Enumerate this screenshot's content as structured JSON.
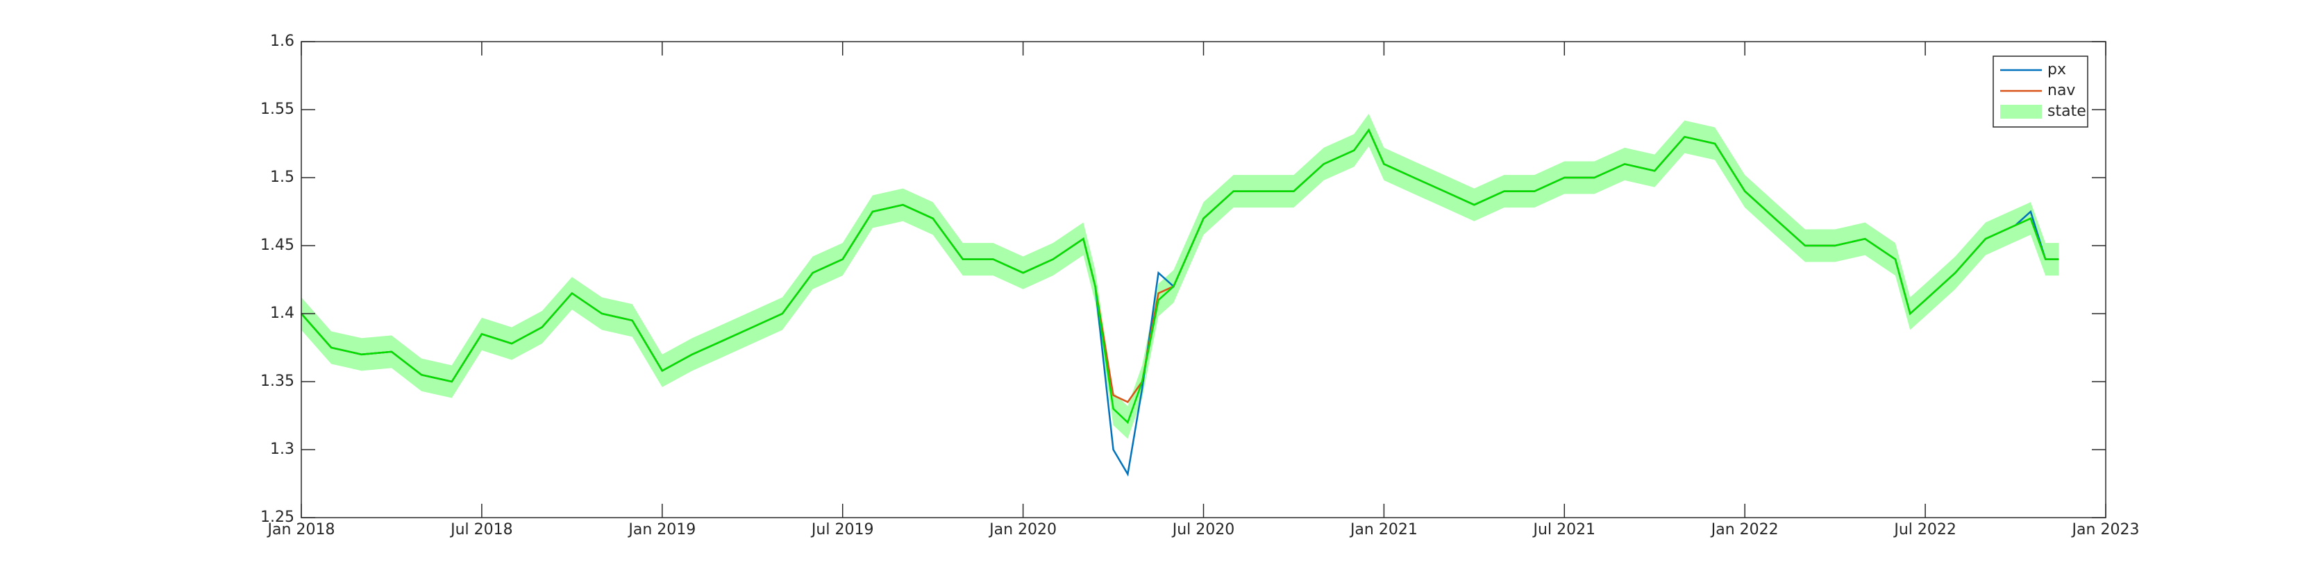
{
  "chart_data": {
    "type": "line",
    "x": [
      2018.0,
      2018.083,
      2018.167,
      2018.25,
      2018.333,
      2018.417,
      2018.5,
      2018.583,
      2018.667,
      2018.75,
      2018.833,
      2018.917,
      2019.0,
      2019.083,
      2019.167,
      2019.25,
      2019.333,
      2019.417,
      2019.5,
      2019.583,
      2019.667,
      2019.75,
      2019.833,
      2019.917,
      2020.0,
      2020.083,
      2020.167,
      2020.2,
      2020.25,
      2020.29,
      2020.33,
      2020.375,
      2020.417,
      2020.5,
      2020.583,
      2020.667,
      2020.75,
      2020.833,
      2020.917,
      2020.958,
      2021.0,
      2021.083,
      2021.167,
      2021.25,
      2021.333,
      2021.417,
      2021.5,
      2021.583,
      2021.667,
      2021.75,
      2021.833,
      2021.917,
      2022.0,
      2022.083,
      2022.167,
      2022.25,
      2022.333,
      2022.417,
      2022.458,
      2022.5,
      2022.583,
      2022.667,
      2022.75,
      2022.792,
      2022.833,
      2022.87
    ],
    "series": [
      {
        "name": "px",
        "color": "#0072bd",
        "values": [
          1.4,
          1.375,
          1.37,
          1.372,
          1.355,
          1.35,
          1.385,
          1.378,
          1.39,
          1.415,
          1.4,
          1.395,
          1.358,
          1.37,
          1.38,
          1.39,
          1.4,
          1.43,
          1.44,
          1.475,
          1.48,
          1.47,
          1.44,
          1.44,
          1.43,
          1.44,
          1.455,
          1.42,
          1.3,
          1.282,
          1.345,
          1.43,
          1.42,
          1.47,
          1.49,
          1.49,
          1.49,
          1.51,
          1.52,
          1.535,
          1.51,
          1.5,
          1.49,
          1.48,
          1.49,
          1.49,
          1.5,
          1.5,
          1.51,
          1.505,
          1.53,
          1.525,
          1.49,
          1.47,
          1.45,
          1.45,
          1.455,
          1.44,
          1.4,
          1.41,
          1.43,
          1.455,
          1.465,
          1.475,
          1.44,
          1.44
        ]
      },
      {
        "name": "nav",
        "color": "#d95319",
        "values": [
          1.4,
          1.375,
          1.37,
          1.372,
          1.355,
          1.35,
          1.385,
          1.378,
          1.39,
          1.415,
          1.4,
          1.395,
          1.358,
          1.37,
          1.38,
          1.39,
          1.4,
          1.43,
          1.44,
          1.475,
          1.48,
          1.47,
          1.44,
          1.44,
          1.43,
          1.44,
          1.455,
          1.42,
          1.34,
          1.335,
          1.35,
          1.415,
          1.42,
          1.47,
          1.49,
          1.49,
          1.49,
          1.51,
          1.52,
          1.535,
          1.51,
          1.5,
          1.49,
          1.48,
          1.49,
          1.49,
          1.5,
          1.5,
          1.51,
          1.505,
          1.53,
          1.525,
          1.49,
          1.47,
          1.45,
          1.45,
          1.455,
          1.44,
          1.4,
          1.41,
          1.43,
          1.455,
          1.465,
          1.47,
          1.44,
          1.44
        ]
      },
      {
        "name": "state",
        "color": "#00e000",
        "band_color": "#aaffaa",
        "band": 0.012,
        "values": [
          1.4,
          1.375,
          1.37,
          1.372,
          1.355,
          1.35,
          1.385,
          1.378,
          1.39,
          1.415,
          1.4,
          1.395,
          1.358,
          1.37,
          1.38,
          1.39,
          1.4,
          1.43,
          1.44,
          1.475,
          1.48,
          1.47,
          1.44,
          1.44,
          1.43,
          1.44,
          1.455,
          1.42,
          1.33,
          1.32,
          1.35,
          1.41,
          1.42,
          1.47,
          1.49,
          1.49,
          1.49,
          1.51,
          1.52,
          1.535,
          1.51,
          1.5,
          1.49,
          1.48,
          1.49,
          1.49,
          1.5,
          1.5,
          1.51,
          1.505,
          1.53,
          1.525,
          1.49,
          1.47,
          1.45,
          1.45,
          1.455,
          1.44,
          1.4,
          1.41,
          1.43,
          1.455,
          1.465,
          1.47,
          1.44,
          1.44
        ]
      }
    ],
    "xlim": [
      2018,
      2023
    ],
    "xticks": [
      {
        "value": 2018,
        "label": "Jan 2018"
      },
      {
        "value": 2018.5,
        "label": "Jul 2018"
      },
      {
        "value": 2019,
        "label": "Jan 2019"
      },
      {
        "value": 2019.5,
        "label": "Jul 2019"
      },
      {
        "value": 2020,
        "label": "Jan 2020"
      },
      {
        "value": 2020.5,
        "label": "Jul 2020"
      },
      {
        "value": 2021,
        "label": "Jan 2021"
      },
      {
        "value": 2021.5,
        "label": "Jul 2021"
      },
      {
        "value": 2022,
        "label": "Jan 2022"
      },
      {
        "value": 2022.5,
        "label": "Jul 2022"
      },
      {
        "value": 2023,
        "label": "Jan 2023"
      }
    ],
    "ylim": [
      1.25,
      1.6
    ],
    "yticks": [
      1.25,
      1.3,
      1.35,
      1.4,
      1.45,
      1.5,
      1.55,
      1.6
    ],
    "legend": "northeast"
  }
}
